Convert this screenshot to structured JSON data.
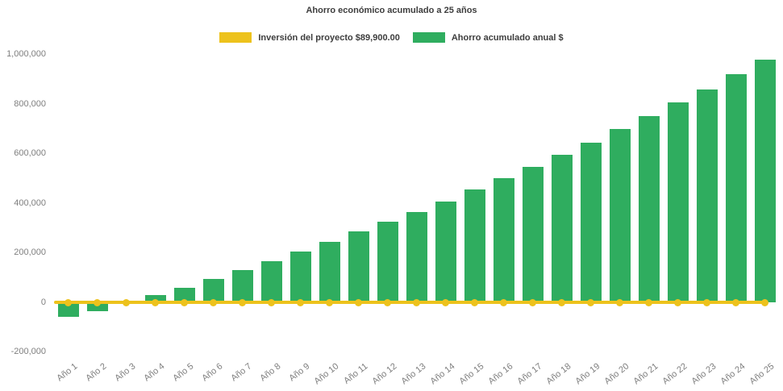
{
  "header": {
    "title": "Ahorro económico acumulado a 25 años"
  },
  "legend": {
    "items": [
      {
        "id": "investment",
        "label": "Inversión del proyecto $89,900.00",
        "color": "#edc21c"
      },
      {
        "id": "savings",
        "label": "Ahorro acumulado anual $",
        "color": "#2fad5f"
      }
    ]
  },
  "chart_data": {
    "type": "bar",
    "title": "Ahorro económico acumulado a 25 años",
    "categories": [
      "Año 1",
      "Año 2",
      "Año 3",
      "Año 4",
      "Año 5",
      "Año 6",
      "Año 7",
      "Año 8",
      "Año 9",
      "Año 10",
      "Año 11",
      "Año 12",
      "Año 13",
      "Año 14",
      "Año 15",
      "Año 16",
      "Año 17",
      "Año 18",
      "Año 19",
      "Año 20",
      "Año 21",
      "Año 22",
      "Año 23",
      "Año 24",
      "Año 25"
    ],
    "series": [
      {
        "name": "Ahorro acumulado anual $",
        "type": "bar",
        "color": "#2fad5f",
        "values": [
          -60000,
          -35000,
          0,
          30000,
          60000,
          95000,
          130000,
          165000,
          205000,
          245000,
          285000,
          325000,
          365000,
          405000,
          455000,
          500000,
          545000,
          595000,
          645000,
          700000,
          750000,
          805000,
          860000,
          920000,
          980000
        ]
      },
      {
        "name": "Inversión del proyecto $89,900.00",
        "type": "line",
        "color": "#edc21c",
        "marker": "circle",
        "values": [
          0,
          0,
          0,
          0,
          0,
          0,
          0,
          0,
          0,
          0,
          0,
          0,
          0,
          0,
          0,
          0,
          0,
          0,
          0,
          0,
          0,
          0,
          0,
          0,
          0
        ]
      }
    ],
    "ylim": [
      -200000,
      1000000
    ],
    "ytick_interval": 200000,
    "yticks": [
      {
        "value": 1000000,
        "label": "1,000,000"
      },
      {
        "value": 800000,
        "label": "800,000"
      },
      {
        "value": 600000,
        "label": "600,000"
      },
      {
        "value": 400000,
        "label": "400,000"
      },
      {
        "value": 200000,
        "label": "200,000"
      },
      {
        "value": 0,
        "label": "0"
      },
      {
        "value": -200000,
        "label": "-200,000"
      }
    ],
    "grid": false,
    "legend_position": "top-center",
    "x_label_rotation_deg": -38
  }
}
